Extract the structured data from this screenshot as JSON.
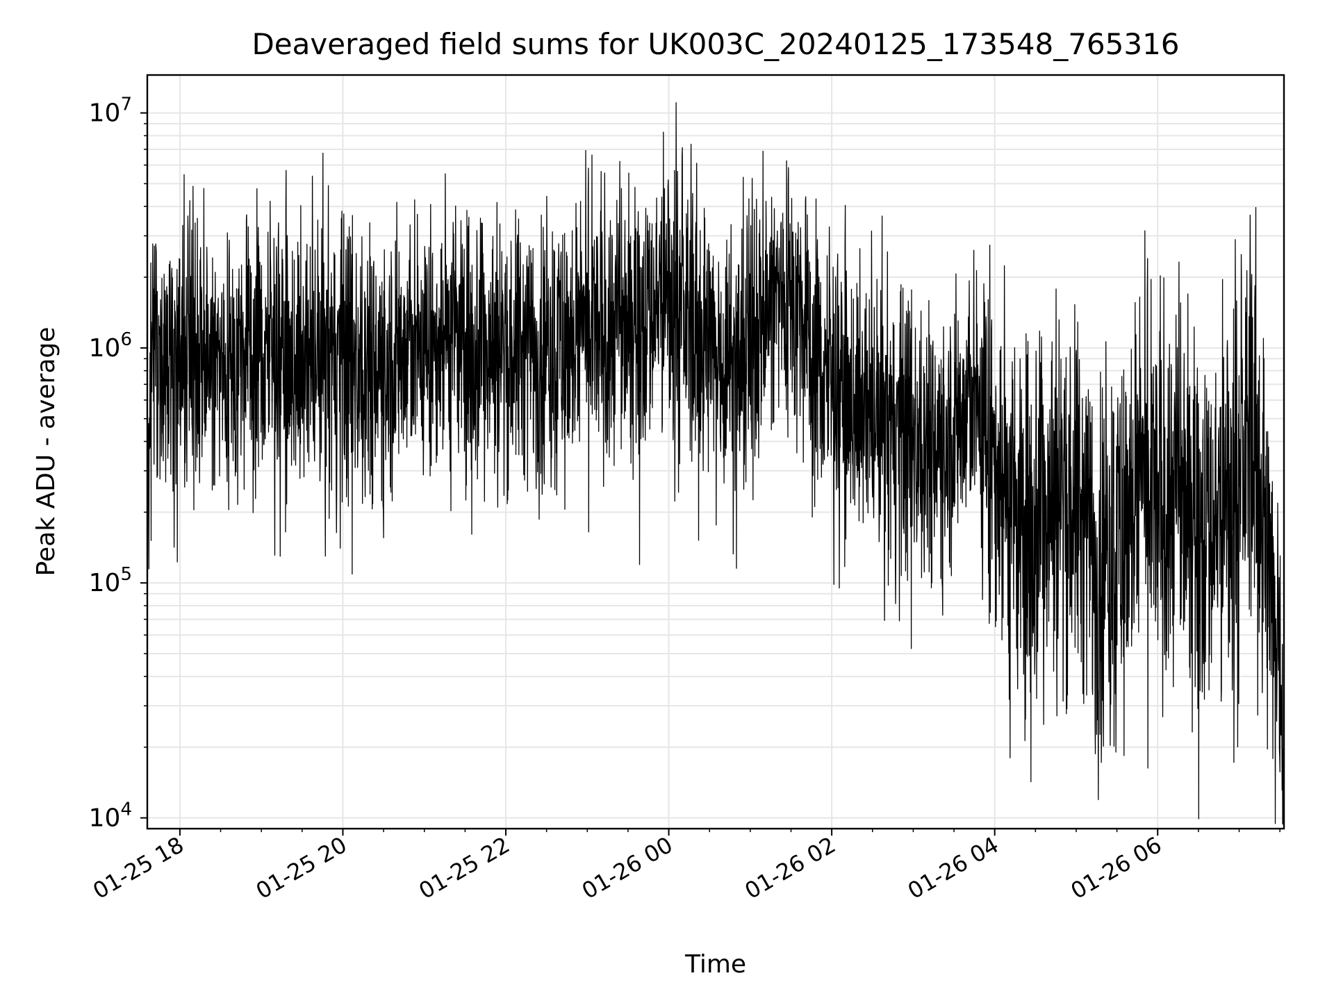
{
  "chart_data": {
    "type": "line",
    "title": "Deaveraged field sums for UK003C_20240125_173548_765316",
    "xlabel": "Time",
    "ylabel": "Peak ADU - average",
    "xscale": "time",
    "yscale": "log",
    "xlim": [
      "2024-01-25T17:36:00",
      "2024-01-26T07:33:00"
    ],
    "ylim": [
      9000,
      14500000
    ],
    "x_ticks": [
      {
        "t": "2024-01-25T18:00:00",
        "label": "01-25 18"
      },
      {
        "t": "2024-01-25T20:00:00",
        "label": "01-25 20"
      },
      {
        "t": "2024-01-25T22:00:00",
        "label": "01-25 22"
      },
      {
        "t": "2024-01-26T00:00:00",
        "label": "01-26 00"
      },
      {
        "t": "2024-01-26T02:00:00",
        "label": "01-26 02"
      },
      {
        "t": "2024-01-26T04:00:00",
        "label": "01-26 04"
      },
      {
        "t": "2024-01-26T06:00:00",
        "label": "01-26 06"
      }
    ],
    "y_ticks": [
      {
        "value": 10000,
        "base": "10",
        "exp": "4"
      },
      {
        "value": 100000,
        "base": "10",
        "exp": "5"
      },
      {
        "value": 1000000,
        "base": "10",
        "exp": "6"
      },
      {
        "value": 10000000,
        "base": "10",
        "exp": "7"
      }
    ],
    "grid": true,
    "line_color": "#000000",
    "grid_color": "#e6e6e6",
    "series": [
      {
        "x": [
          "2024-01-25T17:36:00",
          "2024-01-25T17:40:00",
          "2024-01-25T17:45:00",
          "2024-01-25T17:50:00",
          "2024-01-25T18:00:00",
          "2024-01-25T18:15:00",
          "2024-01-25T18:30:00",
          "2024-01-25T18:45:00",
          "2024-01-25T19:00:00",
          "2024-01-25T19:15:00",
          "2024-01-25T19:30:00",
          "2024-01-25T19:45:00",
          "2024-01-25T20:00:00",
          "2024-01-25T20:15:00",
          "2024-01-25T20:30:00",
          "2024-01-25T20:45:00",
          "2024-01-25T21:00:00",
          "2024-01-25T21:15:00",
          "2024-01-25T21:30:00",
          "2024-01-25T21:45:00",
          "2024-01-25T22:00:00",
          "2024-01-25T22:15:00",
          "2024-01-25T22:30:00",
          "2024-01-25T22:45:00",
          "2024-01-25T23:00:00",
          "2024-01-25T23:15:00",
          "2024-01-25T23:30:00",
          "2024-01-25T23:45:00",
          "2024-01-26T00:00:00",
          "2024-01-26T00:15:00",
          "2024-01-26T00:30:00",
          "2024-01-26T00:45:00",
          "2024-01-26T01:00:00",
          "2024-01-26T01:15:00",
          "2024-01-26T01:30:00",
          "2024-01-26T01:45:00",
          "2024-01-26T02:00:00",
          "2024-01-26T02:15:00",
          "2024-01-26T02:30:00",
          "2024-01-26T02:45:00",
          "2024-01-26T03:00:00",
          "2024-01-26T03:15:00",
          "2024-01-26T03:30:00",
          "2024-01-26T03:45:00",
          "2024-01-26T04:00:00",
          "2024-01-26T04:15:00",
          "2024-01-26T04:30:00",
          "2024-01-26T04:45:00",
          "2024-01-26T05:00:00",
          "2024-01-26T05:15:00",
          "2024-01-26T05:30:00",
          "2024-01-26T05:45:00",
          "2024-01-26T06:00:00",
          "2024-01-26T06:15:00",
          "2024-01-26T06:30:00",
          "2024-01-26T06:45:00",
          "2024-01-26T07:00:00",
          "2024-01-26T07:05:00",
          "2024-01-26T07:10:00",
          "2024-01-26T07:15:00",
          "2024-01-26T07:20:00",
          "2024-01-26T07:25:00",
          "2024-01-26T07:30:00",
          "2024-01-26T07:33:00"
        ],
        "y": [
          400000,
          900000,
          1000000,
          950000,
          1000000,
          950000,
          850000,
          900000,
          950000,
          900000,
          850000,
          880000,
          900000,
          850000,
          900000,
          950000,
          1000000,
          1100000,
          1000000,
          1050000,
          1000000,
          950000,
          1000000,
          1050000,
          1100000,
          1200000,
          1300000,
          1500000,
          1600000,
          1300000,
          1000000,
          900000,
          1000000,
          1600000,
          1800000,
          900000,
          700000,
          600000,
          500000,
          450000,
          420000,
          400000,
          450000,
          600000,
          350000,
          150000,
          200000,
          250000,
          220000,
          120000,
          150000,
          250000,
          220000,
          250000,
          200000,
          180000,
          250000,
          400000,
          500000,
          300000,
          120000,
          70000,
          60000,
          20000
        ]
      }
    ]
  }
}
